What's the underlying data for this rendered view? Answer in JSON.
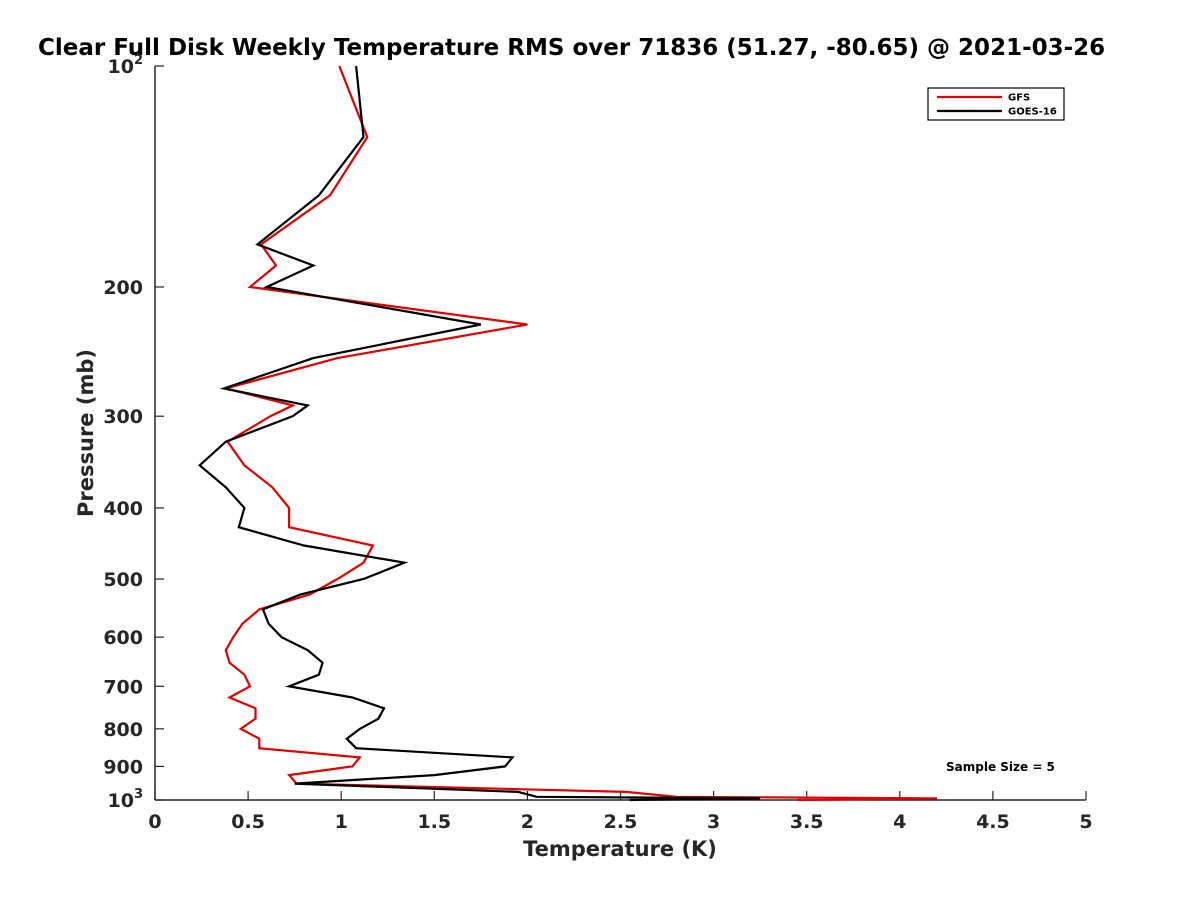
{
  "chart_data": {
    "type": "line",
    "title": "Clear Full Disk Weekly Temperature RMS over 71836 (51.27, -80.65) @ 2021-03-26",
    "xlabel": "Temperature (K)",
    "ylabel": "Pressure (mb)",
    "xlim": [
      0,
      5
    ],
    "ylim": [
      100,
      1000
    ],
    "y_scale": "log",
    "y_reversed": true,
    "x_ticks": [
      "0",
      "0.5",
      "1",
      "1.5",
      "2",
      "2.5",
      "3",
      "3.5",
      "4",
      "4.5",
      "5"
    ],
    "y_ticks": [
      {
        "value": 100,
        "base": "10",
        "exp": "2"
      },
      {
        "value": 200,
        "label": "200"
      },
      {
        "value": 300,
        "label": "300"
      },
      {
        "value": 400,
        "label": "400"
      },
      {
        "value": 500,
        "label": "500"
      },
      {
        "value": 600,
        "label": "600"
      },
      {
        "value": 700,
        "label": "700"
      },
      {
        "value": 800,
        "label": "800"
      },
      {
        "value": 900,
        "label": "900"
      },
      {
        "value": 1000,
        "base": "10",
        "exp": "3"
      }
    ],
    "legend_position": "top-right",
    "annotation": "Sample Size = 5",
    "series": [
      {
        "name": "GFS",
        "color": "#e00000",
        "points": [
          [
            0.99,
            100
          ],
          [
            1.14,
            125
          ],
          [
            0.94,
            150
          ],
          [
            0.57,
            175
          ],
          [
            0.65,
            187
          ],
          [
            0.51,
            200
          ],
          [
            2.0,
            225
          ],
          [
            0.98,
            250
          ],
          [
            0.38,
            275
          ],
          [
            0.74,
            290
          ],
          [
            0.62,
            300
          ],
          [
            0.39,
            325
          ],
          [
            0.48,
            350
          ],
          [
            0.63,
            375
          ],
          [
            0.72,
            400
          ],
          [
            0.72,
            425
          ],
          [
            1.17,
            450
          ],
          [
            1.12,
            475
          ],
          [
            0.98,
            500
          ],
          [
            0.83,
            525
          ],
          [
            0.56,
            550
          ],
          [
            0.47,
            575
          ],
          [
            0.42,
            600
          ],
          [
            0.38,
            625
          ],
          [
            0.4,
            650
          ],
          [
            0.48,
            675
          ],
          [
            0.51,
            700
          ],
          [
            0.4,
            725
          ],
          [
            0.54,
            750
          ],
          [
            0.54,
            775
          ],
          [
            0.46,
            800
          ],
          [
            0.56,
            825
          ],
          [
            0.56,
            850
          ],
          [
            1.1,
            875
          ],
          [
            1.06,
            900
          ],
          [
            0.72,
            925
          ],
          [
            0.76,
            950
          ],
          [
            2.53,
            975
          ],
          [
            2.8,
            990
          ],
          [
            4.2,
            995
          ],
          [
            3.45,
            1000
          ]
        ]
      },
      {
        "name": "GOES-16",
        "color": "#000000",
        "points": [
          [
            1.08,
            100
          ],
          [
            1.12,
            125
          ],
          [
            0.88,
            150
          ],
          [
            0.55,
            175
          ],
          [
            0.85,
            187
          ],
          [
            0.6,
            200
          ],
          [
            1.75,
            225
          ],
          [
            0.85,
            250
          ],
          [
            0.37,
            275
          ],
          [
            0.82,
            290
          ],
          [
            0.74,
            300
          ],
          [
            0.38,
            325
          ],
          [
            0.24,
            350
          ],
          [
            0.38,
            375
          ],
          [
            0.48,
            400
          ],
          [
            0.45,
            425
          ],
          [
            0.8,
            450
          ],
          [
            1.34,
            475
          ],
          [
            1.12,
            500
          ],
          [
            0.78,
            525
          ],
          [
            0.58,
            550
          ],
          [
            0.61,
            575
          ],
          [
            0.68,
            600
          ],
          [
            0.82,
            625
          ],
          [
            0.9,
            650
          ],
          [
            0.88,
            675
          ],
          [
            0.72,
            700
          ],
          [
            1.06,
            725
          ],
          [
            1.23,
            750
          ],
          [
            1.2,
            775
          ],
          [
            1.1,
            800
          ],
          [
            1.03,
            825
          ],
          [
            1.08,
            850
          ],
          [
            1.92,
            875
          ],
          [
            1.88,
            900
          ],
          [
            1.5,
            925
          ],
          [
            0.75,
            950
          ],
          [
            1.95,
            975
          ],
          [
            2.05,
            990
          ],
          [
            3.25,
            995
          ],
          [
            2.55,
            1000
          ]
        ]
      }
    ]
  }
}
